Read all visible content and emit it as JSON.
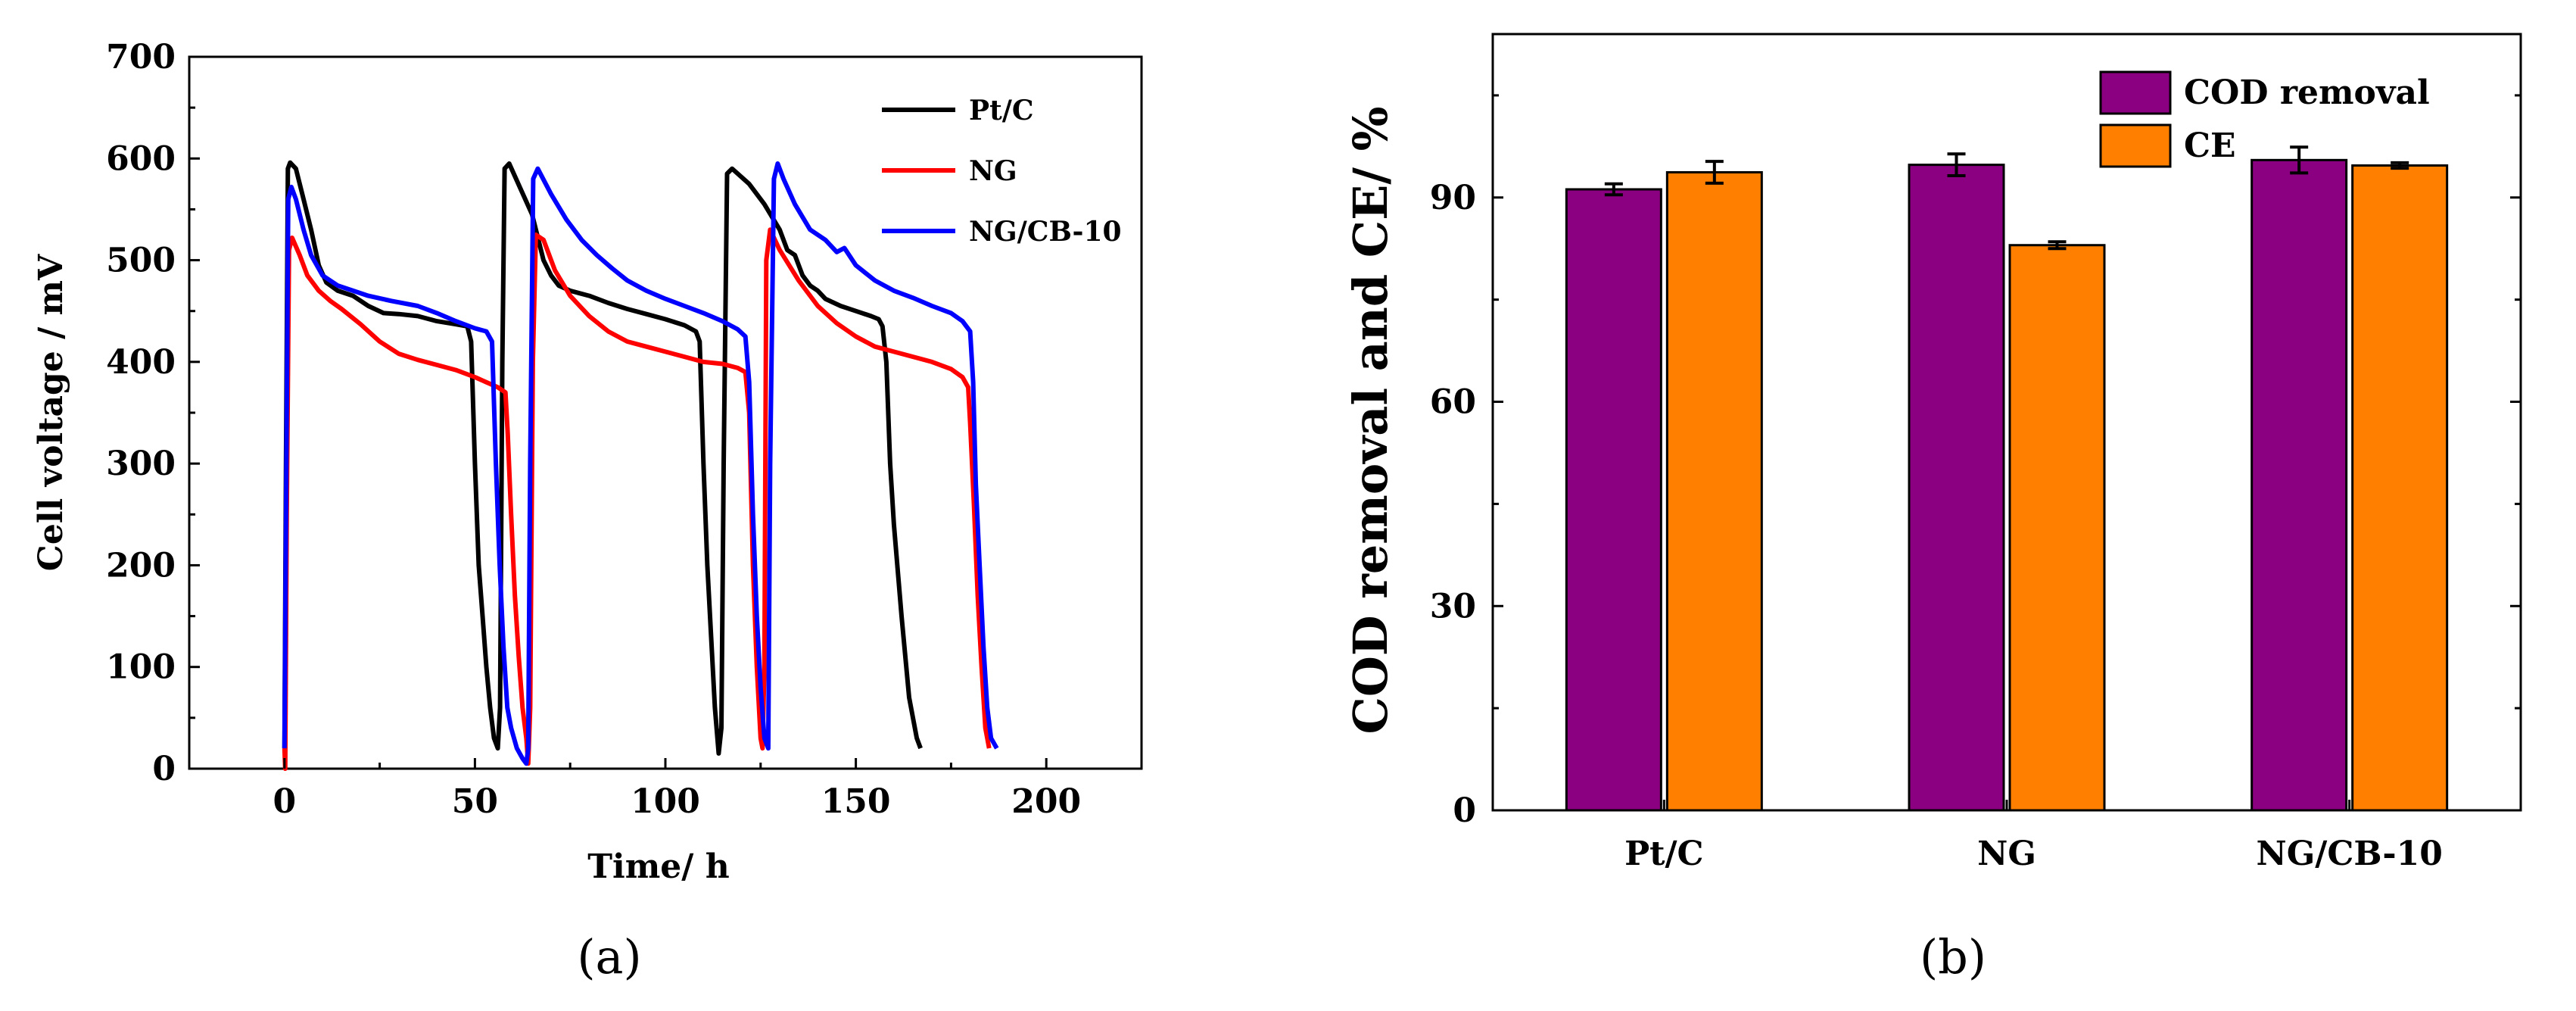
{
  "chart_data": [
    {
      "panel": "(a)",
      "type": "line",
      "xlabel": "Time/ h",
      "ylabel": "Cell voltage / mV",
      "xlim": [
        -25,
        225
      ],
      "ylim": [
        0,
        700
      ],
      "xticks": [
        0,
        50,
        100,
        150,
        200
      ],
      "yticks": [
        0,
        100,
        200,
        300,
        400,
        500,
        600,
        700
      ],
      "legend_position": "top-right",
      "series": [
        {
          "name": "Pt/C",
          "color": "#000000",
          "points": [
            [
              0,
              20
            ],
            [
              0.4,
              300
            ],
            [
              0.9,
              590
            ],
            [
              1.5,
              596
            ],
            [
              3,
              590
            ],
            [
              5,
              560
            ],
            [
              7,
              530
            ],
            [
              9,
              495
            ],
            [
              11,
              478
            ],
            [
              14,
              470
            ],
            [
              18,
              465
            ],
            [
              22,
              455
            ],
            [
              26,
              448
            ],
            [
              30,
              447
            ],
            [
              35,
              445
            ],
            [
              40,
              440
            ],
            [
              45,
              437
            ],
            [
              48,
              435
            ],
            [
              49,
              420
            ],
            [
              50,
              300
            ],
            [
              51,
              200
            ],
            [
              52,
              150
            ],
            [
              53,
              100
            ],
            [
              54,
              60
            ],
            [
              55,
              30
            ],
            [
              56,
              20
            ],
            [
              56.6,
              60
            ],
            [
              57.2,
              400
            ],
            [
              57.8,
              590
            ],
            [
              59,
              595
            ],
            [
              62,
              570
            ],
            [
              65,
              545
            ],
            [
              68,
              500
            ],
            [
              70,
              485
            ],
            [
              72,
              475
            ],
            [
              75,
              470
            ],
            [
              80,
              465
            ],
            [
              85,
              458
            ],
            [
              90,
              452
            ],
            [
              95,
              447
            ],
            [
              100,
              442
            ],
            [
              105,
              436
            ],
            [
              108,
              430
            ],
            [
              109,
              420
            ],
            [
              110,
              300
            ],
            [
              111,
              200
            ],
            [
              112,
              130
            ],
            [
              113,
              60
            ],
            [
              114,
              15
            ],
            [
              114.7,
              40
            ],
            [
              115.3,
              300
            ],
            [
              116.2,
              585
            ],
            [
              117.5,
              590
            ],
            [
              122,
              575
            ],
            [
              126,
              555
            ],
            [
              130,
              530
            ],
            [
              132,
              510
            ],
            [
              134,
              505
            ],
            [
              136,
              485
            ],
            [
              138,
              475
            ],
            [
              140,
              470
            ],
            [
              142,
              462
            ],
            [
              146,
              455
            ],
            [
              150,
              450
            ],
            [
              154,
              445
            ],
            [
              156,
              442
            ],
            [
              157,
              435
            ],
            [
              158,
              400
            ],
            [
              159,
              300
            ],
            [
              160,
              240
            ],
            [
              162,
              150
            ],
            [
              164,
              70
            ],
            [
              166,
              30
            ],
            [
              167,
              20
            ]
          ]
        },
        {
          "name": "NG",
          "color": "#ff0000",
          "points": [
            [
              0,
              20
            ],
            [
              0.2,
              0
            ],
            [
              0.6,
              250
            ],
            [
              1.2,
              510
            ],
            [
              2,
              522
            ],
            [
              4,
              505
            ],
            [
              6,
              485
            ],
            [
              9,
              470
            ],
            [
              12,
              460
            ],
            [
              15,
              452
            ],
            [
              20,
              437
            ],
            [
              25,
              420
            ],
            [
              30,
              408
            ],
            [
              35,
              402
            ],
            [
              40,
              397
            ],
            [
              45,
              392
            ],
            [
              50,
              385
            ],
            [
              53,
              380
            ],
            [
              56,
              375
            ],
            [
              58,
              370
            ],
            [
              58.6,
              330
            ],
            [
              59.5,
              250
            ],
            [
              60.5,
              170
            ],
            [
              61.5,
              110
            ],
            [
              62.5,
              60
            ],
            [
              63.5,
              30
            ],
            [
              64,
              5
            ],
            [
              64.5,
              60
            ],
            [
              65.2,
              400
            ],
            [
              66,
              525
            ],
            [
              68,
              520
            ],
            [
              71,
              490
            ],
            [
              75,
              465
            ],
            [
              80,
              445
            ],
            [
              85,
              430
            ],
            [
              90,
              420
            ],
            [
              95,
              415
            ],
            [
              100,
              410
            ],
            [
              105,
              405
            ],
            [
              110,
              400
            ],
            [
              115,
              398
            ],
            [
              119,
              394
            ],
            [
              121,
              390
            ],
            [
              122,
              350
            ],
            [
              123,
              200
            ],
            [
              124,
              100
            ],
            [
              125,
              30
            ],
            [
              125.5,
              20
            ],
            [
              126,
              100
            ],
            [
              126.5,
              500
            ],
            [
              127.5,
              530
            ],
            [
              128.5,
              522
            ],
            [
              130,
              510
            ],
            [
              135,
              480
            ],
            [
              140,
              455
            ],
            [
              145,
              438
            ],
            [
              150,
              425
            ],
            [
              155,
              415
            ],
            [
              160,
              410
            ],
            [
              165,
              405
            ],
            [
              170,
              400
            ],
            [
              175,
              393
            ],
            [
              178,
              385
            ],
            [
              179.5,
              375
            ],
            [
              180,
              340
            ],
            [
              181,
              260
            ],
            [
              182,
              170
            ],
            [
              183,
              100
            ],
            [
              184,
              40
            ],
            [
              185,
              20
            ]
          ]
        },
        {
          "name": "NG/CB-10",
          "color": "#0000ff",
          "points": [
            [
              0,
              20
            ],
            [
              0.5,
              300
            ],
            [
              1,
              560
            ],
            [
              1.8,
              572
            ],
            [
              3,
              560
            ],
            [
              5,
              530
            ],
            [
              7,
              505
            ],
            [
              10,
              485
            ],
            [
              14,
              475
            ],
            [
              18,
              470
            ],
            [
              22,
              465
            ],
            [
              28,
              460
            ],
            [
              35,
              455
            ],
            [
              40,
              448
            ],
            [
              45,
              440
            ],
            [
              50,
              433
            ],
            [
              53,
              430
            ],
            [
              54.5,
              420
            ],
            [
              55.5,
              300
            ],
            [
              56.5,
              200
            ],
            [
              57.5,
              120
            ],
            [
              58.5,
              60
            ],
            [
              59.5,
              40
            ],
            [
              61,
              20
            ],
            [
              62.5,
              10
            ],
            [
              63.5,
              5
            ],
            [
              64,
              20
            ],
            [
              64.5,
              300
            ],
            [
              65.3,
              580
            ],
            [
              66.5,
              590
            ],
            [
              70,
              565
            ],
            [
              74,
              540
            ],
            [
              78,
              520
            ],
            [
              82,
              505
            ],
            [
              86,
              492
            ],
            [
              90,
              480
            ],
            [
              95,
              470
            ],
            [
              100,
              462
            ],
            [
              105,
              455
            ],
            [
              110,
              448
            ],
            [
              115,
              440
            ],
            [
              119,
              432
            ],
            [
              121,
              425
            ],
            [
              122,
              380
            ],
            [
              123,
              250
            ],
            [
              124,
              150
            ],
            [
              125,
              80
            ],
            [
              126,
              30
            ],
            [
              127,
              20
            ],
            [
              127.5,
              300
            ],
            [
              128.5,
              580
            ],
            [
              129.5,
              595
            ],
            [
              131,
              580
            ],
            [
              134,
              555
            ],
            [
              138,
              530
            ],
            [
              142,
              520
            ],
            [
              145,
              508
            ],
            [
              147,
              512
            ],
            [
              150,
              495
            ],
            [
              155,
              480
            ],
            [
              160,
              470
            ],
            [
              165,
              463
            ],
            [
              170,
              455
            ],
            [
              175,
              448
            ],
            [
              178,
              440
            ],
            [
              180,
              430
            ],
            [
              180.8,
              380
            ],
            [
              181.5,
              280
            ],
            [
              182.5,
              200
            ],
            [
              183.5,
              120
            ],
            [
              184.5,
              60
            ],
            [
              185.5,
              30
            ],
            [
              187,
              20
            ]
          ]
        }
      ]
    },
    {
      "panel": "(b)",
      "type": "bar",
      "ylabel": "COD removal and CE/ %",
      "categories": [
        "Pt/C",
        "NG",
        "NG/CB-10"
      ],
      "ylim": [
        0,
        114
      ],
      "yticks": [
        0,
        30,
        60,
        90
      ],
      "legend_position": "top-right",
      "series": [
        {
          "name": "COD removal",
          "color": "#8b0080",
          "values": [
            91.2,
            94.8,
            95.5
          ],
          "errors": [
            0.8,
            1.6,
            1.9
          ]
        },
        {
          "name": "CE",
          "color": "#ff8000",
          "values": [
            93.7,
            83.0,
            94.7
          ],
          "errors": [
            1.6,
            0.5,
            0.4
          ]
        }
      ]
    }
  ]
}
